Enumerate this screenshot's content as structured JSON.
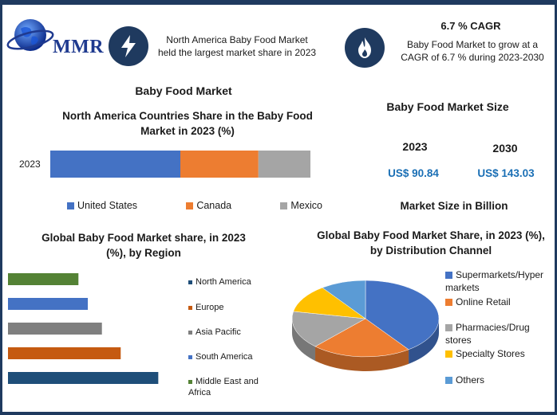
{
  "brand": {
    "logo_text": "MMR"
  },
  "info": {
    "left_text": "North America Baby Food Market held the largest market share in 2023",
    "left_icon": "lightning-icon",
    "right_title": "6.7 % CAGR",
    "right_text": "Baby Food Market to grow at a CAGR of 6.7 % during 2023-2030",
    "right_icon": "flame-icon"
  },
  "main_title": "Baby Food Market",
  "market_size": {
    "title": "Baby Food Market Size",
    "years": [
      "2023",
      "2030"
    ],
    "values": [
      "US$ 90.84",
      "US$ 143.03"
    ],
    "unit_label": "Market Size in Billion"
  },
  "chart_data": [
    {
      "type": "bar",
      "orientation": "horizontal-stacked",
      "title": "North America Countries Share in the Baby Food Market in 2023 (%)",
      "categories": [
        "2023"
      ],
      "series": [
        {
          "name": "United States",
          "values": [
            50
          ],
          "color": "#4472c4"
        },
        {
          "name": "Canada",
          "values": [
            30
          ],
          "color": "#ed7d31"
        },
        {
          "name": "Mexico",
          "values": [
            20
          ],
          "color": "#a5a5a5"
        }
      ],
      "xlim": [
        0,
        100
      ],
      "legend": "bottom"
    },
    {
      "type": "bar",
      "orientation": "horizontal",
      "title": "Global Baby Food Market share, in 2023 (%), by Region",
      "series": [
        {
          "name": "North America",
          "values": [
            32
          ],
          "color": "#1f4e79"
        },
        {
          "name": "Europe",
          "values": [
            24
          ],
          "color": "#c55a11"
        },
        {
          "name": "Asia Pacific",
          "values": [
            20
          ],
          "color": "#7f7f7f"
        },
        {
          "name": "South America",
          "values": [
            17
          ],
          "color": "#4472c4"
        },
        {
          "name": "Middle East and Africa",
          "values": [
            15
          ],
          "color": "#548235"
        }
      ],
      "xlim": [
        0,
        35
      ],
      "legend": "right"
    },
    {
      "type": "pie",
      "style": "3d",
      "title": "Global Baby Food Market Share, in 2023 (%), by Distribution Channel",
      "series": [
        {
          "name": "Supermarkets/Hypermarkets",
          "value": 40,
          "color": "#4472c4"
        },
        {
          "name": "Online Retail",
          "value": 22,
          "color": "#ed7d31"
        },
        {
          "name": "Pharmacies/Drugstores",
          "value": 16,
          "color": "#a5a5a5"
        },
        {
          "name": "Specialty Stores",
          "value": 12,
          "color": "#ffc000"
        },
        {
          "name": "Others",
          "value": 10,
          "color": "#5b9bd5"
        }
      ],
      "legend": "right"
    }
  ]
}
